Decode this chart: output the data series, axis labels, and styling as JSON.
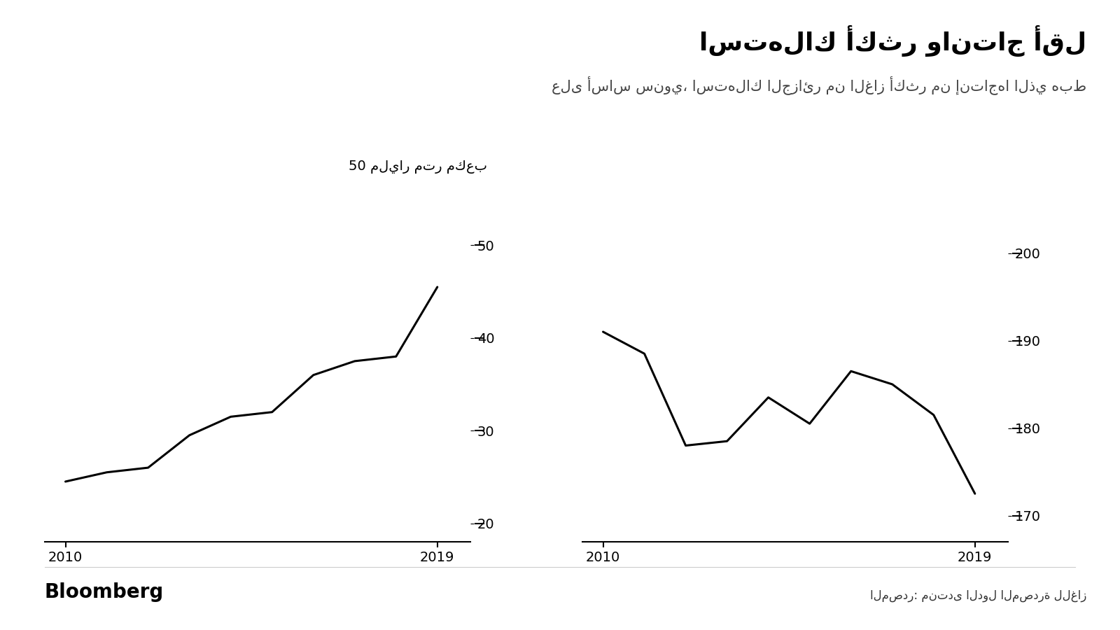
{
  "title": "استهلاك أكثر وانتاج أقل",
  "subtitle": "على أساس سنوي، استهلاك الجزائر من الغاز أكثر من إنتاجها الذي هبط",
  "source_label": "المصدر: منتدى الدول المصدرة للغاز",
  "bloomberg_label": "Bloomberg",
  "left_ylabel": "50 مليار متر مكعب",
  "left_x": [
    2010,
    2011,
    2012,
    2013,
    2014,
    2015,
    2016,
    2017,
    2018,
    2019
  ],
  "left_y": [
    24.5,
    25.5,
    26.0,
    29.5,
    31.5,
    32.0,
    36.0,
    37.5,
    38.0,
    45.5
  ],
  "left_ylim": [
    18,
    52
  ],
  "left_yticks": [
    20,
    30,
    40,
    50
  ],
  "left_xlim": [
    2009.5,
    2019.8
  ],
  "right_x": [
    2010,
    2011,
    2012,
    2013,
    2014,
    2015,
    2016,
    2017,
    2018,
    2019
  ],
  "right_y": [
    191.0,
    188.5,
    178.0,
    178.5,
    183.5,
    180.5,
    186.5,
    185.0,
    181.5,
    172.5
  ],
  "right_ylim": [
    167,
    203
  ],
  "right_yticks": [
    170,
    180,
    190,
    200
  ],
  "right_xlim": [
    2009.5,
    2019.8
  ],
  "line_color": "#000000",
  "line_width": 2.2,
  "background_color": "#ffffff",
  "title_fontsize": 26,
  "subtitle_fontsize": 15,
  "tick_fontsize": 14,
  "source_fontsize": 12,
  "bloomberg_fontsize": 20
}
